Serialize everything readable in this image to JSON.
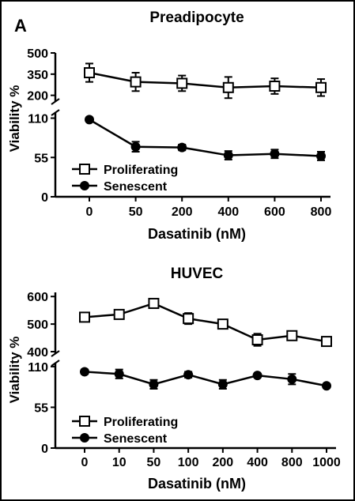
{
  "panel_letter": "A",
  "chart_data": [
    {
      "type": "line",
      "title": "Preadipocyte",
      "xlabel": "Dasatinib (nM)",
      "ylabel": "Viability %",
      "categories": [
        "0",
        "50",
        "200",
        "400",
        "600",
        "800"
      ],
      "axis_break": true,
      "y_upper": {
        "ylim": [
          170,
          500
        ],
        "ticks": [
          200,
          350,
          500
        ]
      },
      "y_lower": {
        "ylim": [
          0,
          115
        ],
        "ticks": [
          0,
          55,
          110
        ]
      },
      "legend_position": "lower-left",
      "series": [
        {
          "name": "Proliferating",
          "marker": "open-square",
          "segment": "upper",
          "values": [
            360,
            295,
            285,
            255,
            265,
            255
          ],
          "errors": [
            65,
            65,
            55,
            75,
            55,
            60
          ]
        },
        {
          "name": "Senescent",
          "marker": "filled-circle",
          "segment": "lower",
          "values": [
            108,
            70,
            69,
            58,
            60,
            57
          ],
          "errors": [
            1,
            7,
            4,
            6,
            6,
            6
          ]
        }
      ]
    },
    {
      "type": "line",
      "title": "HUVEC",
      "xlabel": "Dasatinib (nM)",
      "ylabel": "Viability %",
      "categories": [
        "0",
        "10",
        "50",
        "100",
        "200",
        "400",
        "800",
        "1000"
      ],
      "axis_break": true,
      "y_upper": {
        "ylim": [
          400,
          615
        ],
        "ticks": [
          400,
          500,
          600
        ]
      },
      "y_lower": {
        "ylim": [
          0,
          112
        ],
        "ticks": [
          0,
          55,
          110
        ]
      },
      "legend_position": "lower-left",
      "series": [
        {
          "name": "Proliferating",
          "marker": "open-square",
          "segment": "upper",
          "values": [
            525,
            535,
            575,
            520,
            500,
            443,
            458,
            437
          ],
          "errors": [
            6,
            8,
            14,
            20,
            8,
            22,
            8,
            6
          ]
        },
        {
          "name": "Senescent",
          "marker": "filled-circle",
          "segment": "lower",
          "values": [
            103,
            100,
            86,
            99,
            86,
            98,
            93,
            84
          ],
          "errors": [
            3,
            6,
            6,
            4,
            6,
            2,
            7,
            2
          ]
        }
      ]
    }
  ]
}
